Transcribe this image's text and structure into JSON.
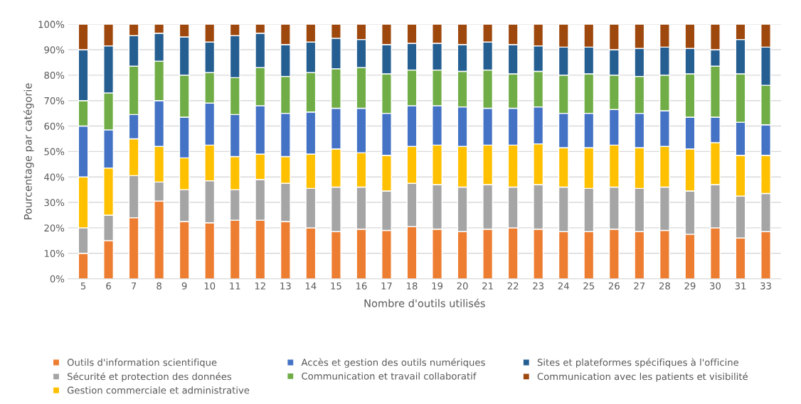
{
  "chart_data": {
    "type": "bar",
    "stacked": true,
    "xlabel": "Nombre d'outils utilisés",
    "ylabel": "Pourcentage par catégorie",
    "categories": [
      "5",
      "6",
      "7",
      "8",
      "9",
      "10",
      "11",
      "12",
      "13",
      "14",
      "15",
      "16",
      "17",
      "18",
      "19",
      "20",
      "21",
      "22",
      "23",
      "24",
      "25",
      "26",
      "27",
      "28",
      "29",
      "30",
      "31",
      "33"
    ],
    "ylim": [
      0,
      100
    ],
    "yticks": [
      {
        "value": 0,
        "label": "0%"
      },
      {
        "value": 10,
        "label": "10%"
      },
      {
        "value": 20,
        "label": "20%"
      },
      {
        "value": 30,
        "label": "30%"
      },
      {
        "value": 40,
        "label": "40%"
      },
      {
        "value": 50,
        "label": "50%"
      },
      {
        "value": 60,
        "label": "60%"
      },
      {
        "value": 70,
        "label": "70%"
      },
      {
        "value": 80,
        "label": "80%"
      },
      {
        "value": 90,
        "label": "90%"
      },
      {
        "value": 100,
        "label": "100%"
      }
    ],
    "grid": "y",
    "legend": "bottom",
    "series": [
      {
        "name": "Outils d'information scientifique",
        "color": "#ed7d31",
        "values": [
          10,
          15,
          24,
          30.5,
          22.5,
          22,
          23,
          23,
          22.5,
          20,
          18.5,
          19.5,
          19,
          20.5,
          19.5,
          18.5,
          19.5,
          20,
          19.5,
          18.5,
          18.5,
          19.5,
          18.5,
          19,
          17.5,
          20,
          16,
          18.5
        ]
      },
      {
        "name": "Sécurité et protection des données",
        "color": "#a5a5a5",
        "values": [
          10,
          10,
          16.5,
          7.5,
          12.5,
          16.5,
          12,
          16,
          15,
          15.5,
          17.5,
          16.5,
          15.5,
          17,
          17.5,
          17.5,
          17.5,
          16,
          17.5,
          17.5,
          17,
          16.5,
          17,
          17,
          17,
          17,
          16.5,
          15
        ]
      },
      {
        "name": "Gestion commerciale et administrative",
        "color": "#ffc000",
        "values": [
          20,
          18.5,
          14.5,
          14,
          12.5,
          14,
          13,
          10,
          10.5,
          13.5,
          15,
          13.5,
          14,
          14.5,
          15.5,
          16,
          15.5,
          16.5,
          16,
          15.5,
          16,
          16.5,
          16,
          16,
          16.5,
          16.5,
          16,
          15
        ]
      },
      {
        "name": "Accès et gestion des outils numériques",
        "color": "#4472c4",
        "values": [
          20,
          15,
          9.5,
          18,
          16,
          16.5,
          16.5,
          19,
          17,
          16.5,
          16,
          17.5,
          16.5,
          16,
          15.5,
          15.5,
          14.5,
          14.5,
          14.5,
          13.5,
          13.5,
          14,
          13.5,
          14,
          12.5,
          10,
          13,
          12
        ]
      },
      {
        "name": "Communication et travail collaboratif",
        "color": "#70ad47",
        "values": [
          10,
          14.5,
          19,
          15.5,
          16.5,
          12,
          14.5,
          15,
          14.5,
          15.5,
          15.5,
          16,
          15.5,
          14,
          14,
          14,
          15,
          13.5,
          14,
          15,
          15.5,
          13.5,
          14.5,
          14,
          17,
          20,
          19,
          15.5
        ]
      },
      {
        "name": "Sites et plateformes spécifiques à l'officine",
        "color": "#255e91",
        "values": [
          20,
          18.5,
          12,
          11,
          15,
          12,
          16.5,
          13.5,
          12.5,
          12,
          12,
          11,
          11.5,
          10.5,
          10.5,
          10.5,
          11,
          11.5,
          10,
          11,
          10.5,
          10,
          11,
          11,
          10,
          6.5,
          13.5,
          15
        ]
      },
      {
        "name": "Communication avec les patients et visibilité",
        "color": "#9e480e",
        "values": [
          10,
          8.5,
          4.5,
          3.5,
          5,
          7,
          4.5,
          3.5,
          8,
          7,
          5.5,
          6,
          8,
          7.5,
          7.5,
          8,
          7,
          8,
          8.5,
          9,
          9,
          10,
          9.5,
          9,
          9.5,
          10,
          6,
          9
        ]
      }
    ]
  }
}
